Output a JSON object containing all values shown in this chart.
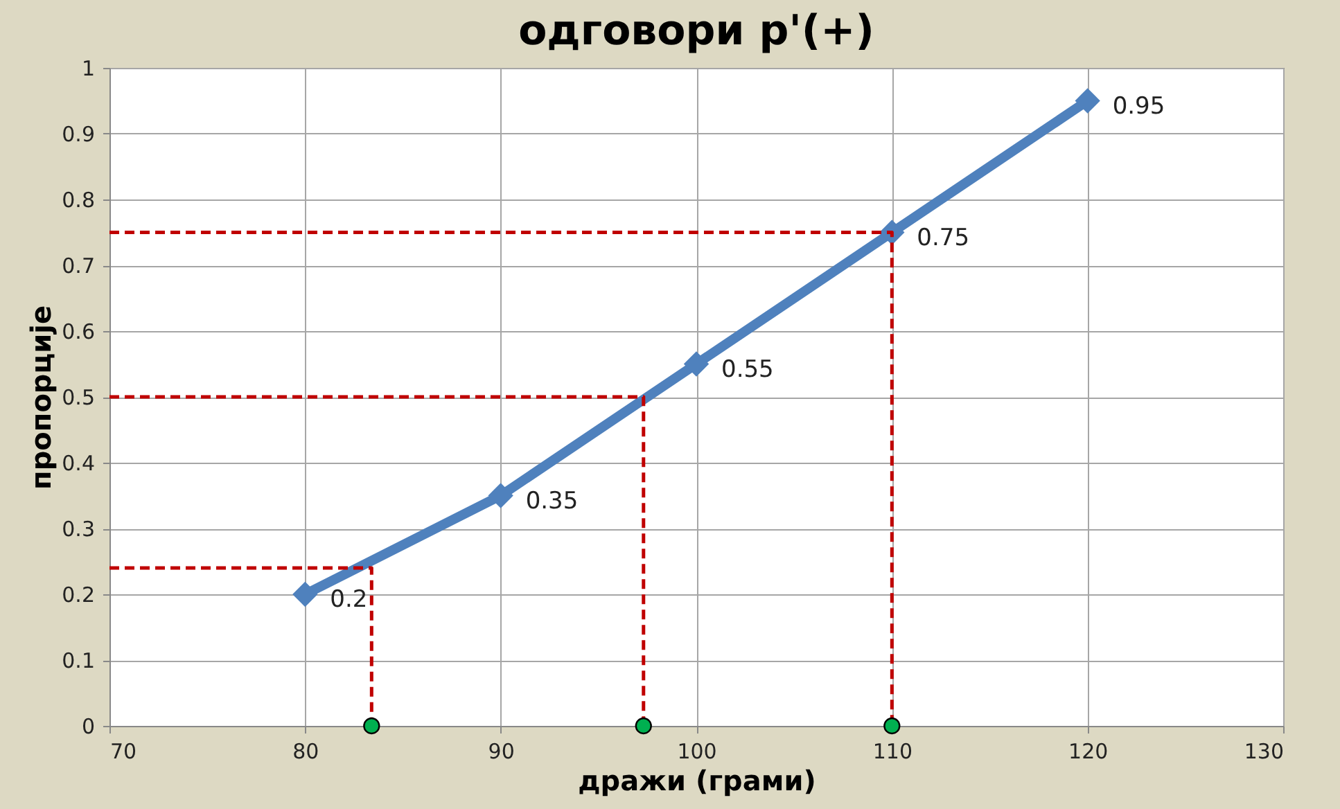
{
  "chart_data": {
    "type": "line",
    "title": "одговори  p'(+)",
    "xlabel": "дражи (грами)",
    "ylabel": "пропорције",
    "xlim": [
      70,
      130
    ],
    "xticks": [
      70,
      80,
      90,
      100,
      110,
      120,
      130
    ],
    "ylim": [
      0,
      1
    ],
    "yticks": [
      0,
      0.1,
      0.2,
      0.3,
      0.4,
      0.5,
      0.6,
      0.7,
      0.8,
      0.9,
      1
    ],
    "grid": true,
    "series": [
      {
        "color": "#4f81bd",
        "marker": "diamond",
        "line_style": "solid",
        "data_labels": true,
        "x": [
          80,
          90,
          100,
          110,
          120
        ],
        "values": [
          0.2,
          0.35,
          0.55,
          0.75,
          0.95
        ]
      },
      {
        "type": "line",
        "color": "#c00000",
        "marker": "none",
        "line_style": "dashed",
        "x": [
          70,
          83.4,
          83.4
        ],
        "values": [
          0.24,
          0.24,
          0
        ]
      },
      {
        "type": "line",
        "color": "#c00000",
        "marker": "none",
        "line_style": "dashed",
        "x": [
          70,
          97.3,
          97.3
        ],
        "values": [
          0.5,
          0.5,
          0
        ]
      },
      {
        "type": "line",
        "color": "#c00000",
        "marker": "none",
        "line_style": "dashed",
        "x": [
          70,
          110,
          110
        ],
        "values": [
          0.75,
          0.75,
          0
        ]
      },
      {
        "type": "scatter",
        "color": "#00b050",
        "marker": "circle",
        "x": [
          83.4,
          97.3,
          110
        ],
        "values": [
          0,
          0,
          0
        ]
      }
    ]
  }
}
